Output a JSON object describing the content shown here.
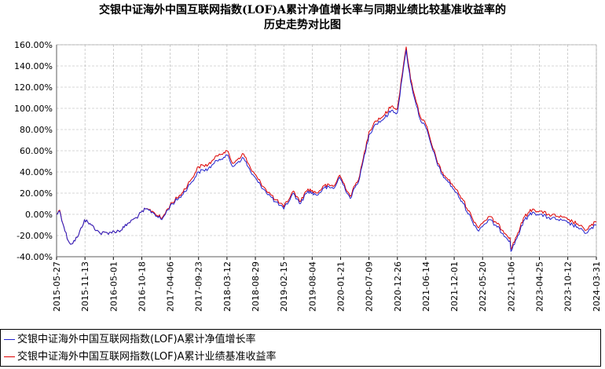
{
  "chart_data": {
    "type": "line",
    "title": "交银中证海外中国互联网指数(LOF)A累计净值增长率与同期业绩比较基准收益率的",
    "subtitle": "历史走势对比图",
    "xlabel": "",
    "ylabel": "",
    "ylim": [
      -40,
      160
    ],
    "yticks": [
      -40,
      -20,
      0,
      20,
      40,
      60,
      80,
      100,
      120,
      140,
      160
    ],
    "ytick_labels": [
      "-40.00%",
      "-20.00%",
      "0.00%",
      "20.00%",
      "40.00%",
      "60.00%",
      "80.00%",
      "100.00%",
      "120.00%",
      "140.00%",
      "160.00%"
    ],
    "xlim": [
      "2015-05-27",
      "2024-03-31"
    ],
    "xtick_labels": [
      "2015-05-27",
      "2015-11-13",
      "2016-05-01",
      "2016-10-18",
      "2017-04-06",
      "2017-09-23",
      "2018-03-12",
      "2018-08-29",
      "2019-02-15",
      "2019-08-04",
      "2020-01-21",
      "2020-07-09",
      "2020-12-26",
      "2021-06-14",
      "2021-12-01",
      "2022-05-20",
      "2022-11-06",
      "2023-04-25",
      "2023-10-12",
      "2024-03-31"
    ],
    "grid": true,
    "legend_position": "bottom",
    "colors": {
      "nav": "#2222cc",
      "benchmark": "#dd0000"
    },
    "x": [
      "2015-05-27",
      "2015-06-15",
      "2015-07-10",
      "2015-08-05",
      "2015-08-25",
      "2015-10-05",
      "2015-11-10",
      "2015-12-20",
      "2016-01-25",
      "2016-02-12",
      "2016-04-15",
      "2016-06-15",
      "2016-08-01",
      "2016-09-15",
      "2016-11-10",
      "2016-12-20",
      "2017-02-15",
      "2017-04-06",
      "2017-06-15",
      "2017-08-10",
      "2017-09-23",
      "2017-11-20",
      "2017-12-25",
      "2018-01-25",
      "2018-03-12",
      "2018-04-15",
      "2018-05-20",
      "2018-06-20",
      "2018-08-01",
      "2018-09-15",
      "2018-10-29",
      "2018-12-25",
      "2019-02-15",
      "2019-04-15",
      "2019-05-20",
      "2019-07-10",
      "2019-09-01",
      "2019-10-15",
      "2019-12-15",
      "2020-01-15",
      "2020-03-19",
      "2020-05-15",
      "2020-07-09",
      "2020-08-15",
      "2020-10-05",
      "2020-11-20",
      "2020-12-26",
      "2021-01-25",
      "2021-02-17",
      "2021-03-15",
      "2021-05-10",
      "2021-06-14",
      "2021-07-27",
      "2021-09-15",
      "2021-10-20",
      "2021-12-01",
      "2022-01-25",
      "2022-03-15",
      "2022-04-20",
      "2022-06-30",
      "2022-08-15",
      "2022-10-31",
      "2022-11-06",
      "2023-01-27",
      "2023-03-15",
      "2023-04-25",
      "2023-06-15",
      "2023-08-15",
      "2023-10-12",
      "2023-12-10",
      "2024-01-22",
      "2024-03-31"
    ],
    "series": [
      {
        "name": "交银中证海外中国互联网指数(LOF)A累计净值增长率",
        "values": [
          0,
          3,
          -12,
          -25,
          -28,
          -20,
          -5,
          -10,
          -15,
          -18,
          -17,
          -15,
          -8,
          -3,
          5,
          2,
          -5,
          8,
          18,
          30,
          40,
          43,
          48,
          52,
          56,
          45,
          50,
          53,
          40,
          30,
          22,
          12,
          5,
          20,
          10,
          22,
          18,
          25,
          25,
          35,
          15,
          35,
          75,
          85,
          90,
          98,
          96,
          130,
          155,
          125,
          90,
          82,
          60,
          38,
          32,
          23,
          10,
          -5,
          -15,
          -5,
          -12,
          -25,
          -35,
          -5,
          2,
          0,
          -3,
          -5,
          -8,
          -12,
          -18,
          -10
        ]
      },
      {
        "name": "交银中证海外中国互联网指数(LOF)A累计业绩基准收益率",
        "values": [
          0,
          4,
          -12,
          -25,
          -28,
          -20,
          -5,
          -10,
          -15,
          -18,
          -17,
          -15,
          -8,
          -3,
          5,
          3,
          -4,
          9,
          20,
          33,
          45,
          47,
          52,
          57,
          60,
          48,
          53,
          57,
          43,
          33,
          24,
          14,
          7,
          22,
          12,
          24,
          20,
          27,
          27,
          37,
          17,
          37,
          78,
          88,
          93,
          102,
          100,
          133,
          158,
          128,
          93,
          85,
          62,
          40,
          34,
          26,
          13,
          -2,
          -12,
          -2,
          -9,
          -22,
          -33,
          -2,
          5,
          3,
          0,
          -2,
          -5,
          -9,
          -15,
          -7
        ]
      }
    ]
  }
}
